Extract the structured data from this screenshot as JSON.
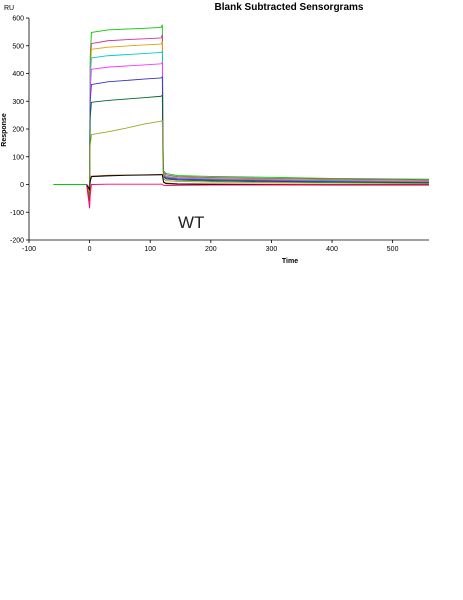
{
  "chart_data": {
    "type": "line",
    "title": "Blank Subtracted Sensorgrams",
    "xlabel": "Time",
    "ylabel": "Response",
    "y_unit": "RU",
    "annotation": "WT",
    "xlim": [
      -100,
      560
    ],
    "ylim": [
      -200,
      600
    ],
    "x_ticks": [
      -100,
      0,
      100,
      200,
      300,
      400,
      500
    ],
    "y_ticks": [
      -200,
      -100,
      0,
      100,
      200,
      300,
      400,
      500,
      600
    ],
    "grid": false,
    "legend": "none",
    "series": [
      {
        "color": "#00cc00",
        "points": [
          [
            -60,
            0
          ],
          [
            -5,
            0
          ],
          [
            0,
            -40
          ],
          [
            1,
            460
          ],
          [
            3,
            548
          ],
          [
            30,
            557
          ],
          [
            60,
            560
          ],
          [
            90,
            563
          ],
          [
            118,
            566
          ],
          [
            120,
            575
          ],
          [
            121,
            160
          ],
          [
            122,
            50
          ],
          [
            126,
            40
          ],
          [
            145,
            32
          ],
          [
            200,
            29
          ],
          [
            300,
            26
          ],
          [
            400,
            22
          ],
          [
            500,
            20
          ],
          [
            560,
            19
          ]
        ]
      },
      {
        "color": "#cc3399",
        "points": [
          [
            -5,
            0
          ],
          [
            0,
            -30
          ],
          [
            1,
            420
          ],
          [
            3,
            508
          ],
          [
            30,
            518
          ],
          [
            60,
            522
          ],
          [
            90,
            525
          ],
          [
            118,
            528
          ],
          [
            120,
            540
          ],
          [
            121,
            140
          ],
          [
            122,
            45
          ],
          [
            126,
            35
          ],
          [
            145,
            28
          ],
          [
            200,
            25
          ],
          [
            300,
            22
          ],
          [
            400,
            19
          ],
          [
            500,
            17
          ],
          [
            560,
            16
          ]
        ]
      },
      {
        "color": "#e6a000",
        "points": [
          [
            -5,
            0
          ],
          [
            0,
            -30
          ],
          [
            1,
            400
          ],
          [
            3,
            487
          ],
          [
            30,
            495
          ],
          [
            60,
            499
          ],
          [
            90,
            503
          ],
          [
            118,
            506
          ],
          [
            120,
            515
          ],
          [
            121,
            130
          ],
          [
            122,
            40
          ],
          [
            126,
            30
          ],
          [
            145,
            25
          ],
          [
            200,
            22
          ],
          [
            300,
            19
          ],
          [
            400,
            16
          ],
          [
            500,
            14
          ],
          [
            560,
            13
          ]
        ]
      },
      {
        "color": "#00cccc",
        "points": [
          [
            -5,
            0
          ],
          [
            0,
            -20
          ],
          [
            1,
            380
          ],
          [
            3,
            456
          ],
          [
            30,
            464
          ],
          [
            60,
            468
          ],
          [
            90,
            472
          ],
          [
            118,
            476
          ],
          [
            120,
            480
          ],
          [
            121,
            120
          ],
          [
            122,
            38
          ],
          [
            126,
            28
          ],
          [
            145,
            23
          ],
          [
            200,
            20
          ],
          [
            300,
            17
          ],
          [
            400,
            14
          ],
          [
            500,
            12
          ],
          [
            560,
            11
          ]
        ]
      },
      {
        "color": "#ff33ff",
        "points": [
          [
            -5,
            0
          ],
          [
            0,
            -20
          ],
          [
            1,
            340
          ],
          [
            3,
            415
          ],
          [
            30,
            423
          ],
          [
            60,
            427
          ],
          [
            90,
            431
          ],
          [
            118,
            435
          ],
          [
            120,
            440
          ],
          [
            121,
            110
          ],
          [
            122,
            35
          ],
          [
            126,
            26
          ],
          [
            145,
            21
          ],
          [
            200,
            18
          ],
          [
            300,
            15
          ],
          [
            400,
            12
          ],
          [
            500,
            10
          ],
          [
            560,
            9
          ]
        ]
      },
      {
        "color": "#3333cc",
        "points": [
          [
            -5,
            0
          ],
          [
            0,
            -15
          ],
          [
            1,
            300
          ],
          [
            3,
            360
          ],
          [
            30,
            370
          ],
          [
            60,
            375
          ],
          [
            90,
            380
          ],
          [
            118,
            384
          ],
          [
            120,
            388
          ],
          [
            121,
            100
          ],
          [
            122,
            30
          ],
          [
            126,
            23
          ],
          [
            145,
            19
          ],
          [
            200,
            16
          ],
          [
            300,
            13
          ],
          [
            400,
            10
          ],
          [
            500,
            8
          ],
          [
            560,
            7
          ]
        ]
      },
      {
        "color": "#006633",
        "points": [
          [
            -5,
            0
          ],
          [
            0,
            -10
          ],
          [
            1,
            240
          ],
          [
            3,
            296
          ],
          [
            30,
            303
          ],
          [
            60,
            308
          ],
          [
            90,
            313
          ],
          [
            118,
            318
          ],
          [
            120,
            322
          ],
          [
            121,
            85
          ],
          [
            122,
            27
          ],
          [
            126,
            20
          ],
          [
            145,
            16
          ],
          [
            200,
            13
          ],
          [
            300,
            10
          ],
          [
            400,
            8
          ],
          [
            500,
            6
          ],
          [
            560,
            5
          ]
        ]
      },
      {
        "color": "#99aa22",
        "points": [
          [
            -5,
            0
          ],
          [
            0,
            -10
          ],
          [
            1,
            140
          ],
          [
            3,
            180
          ],
          [
            30,
            190
          ],
          [
            60,
            203
          ],
          [
            90,
            218
          ],
          [
            118,
            228
          ],
          [
            120,
            232
          ],
          [
            121,
            60
          ],
          [
            122,
            20
          ],
          [
            126,
            14
          ],
          [
            145,
            11
          ],
          [
            200,
            9
          ],
          [
            300,
            7
          ],
          [
            400,
            5
          ],
          [
            500,
            4
          ],
          [
            560,
            3
          ]
        ]
      },
      {
        "color": "#993300",
        "points": [
          [
            -5,
            0
          ],
          [
            0,
            -60
          ],
          [
            1,
            20
          ],
          [
            3,
            30
          ],
          [
            30,
            33
          ],
          [
            60,
            34
          ],
          [
            90,
            35
          ],
          [
            118,
            36
          ],
          [
            120,
            36
          ],
          [
            122,
            10
          ],
          [
            126,
            5
          ],
          [
            145,
            3
          ],
          [
            200,
            2
          ],
          [
            300,
            1
          ],
          [
            400,
            0
          ],
          [
            500,
            0
          ],
          [
            560,
            0
          ]
        ]
      },
      {
        "color": "#000000",
        "points": [
          [
            -5,
            0
          ],
          [
            0,
            -20
          ],
          [
            1,
            10
          ],
          [
            3,
            28
          ],
          [
            30,
            31
          ],
          [
            60,
            33
          ],
          [
            90,
            34
          ],
          [
            118,
            35
          ],
          [
            120,
            35
          ],
          [
            122,
            8
          ],
          [
            126,
            3
          ],
          [
            145,
            1
          ],
          [
            200,
            0
          ],
          [
            300,
            -1
          ],
          [
            400,
            -2
          ],
          [
            500,
            -2
          ],
          [
            560,
            -2
          ]
        ]
      },
      {
        "color": "#ff0066",
        "points": [
          [
            -5,
            0
          ],
          [
            0,
            -85
          ],
          [
            1,
            -40
          ],
          [
            3,
            0
          ],
          [
            30,
            1
          ],
          [
            60,
            1
          ],
          [
            90,
            1
          ],
          [
            118,
            1
          ],
          [
            120,
            1
          ],
          [
            122,
            -3
          ],
          [
            126,
            -4
          ],
          [
            145,
            -3
          ],
          [
            200,
            -2
          ],
          [
            300,
            -2
          ],
          [
            400,
            -1
          ],
          [
            500,
            -1
          ],
          [
            560,
            -1
          ]
        ]
      }
    ]
  }
}
